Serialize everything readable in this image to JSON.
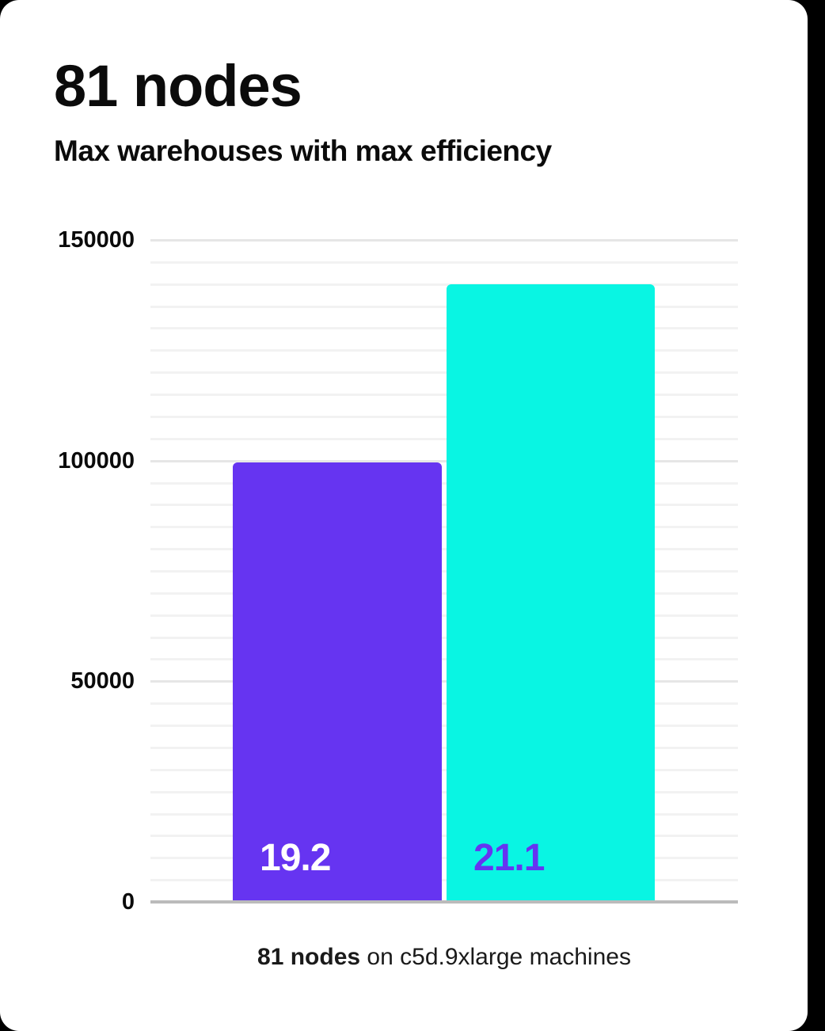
{
  "page": {
    "title": "81 nodes",
    "subtitle": "Max warehouses with max efficiency"
  },
  "caption": {
    "bold": "81 nodes",
    "rest": " on c5d.9xlarge machines"
  },
  "chart_data": {
    "type": "bar",
    "title": "81 nodes",
    "subtitle": "Max warehouses with max efficiency",
    "categories": [
      "19.2",
      "21.1"
    ],
    "values": [
      99600,
      140000
    ],
    "bar_labels": [
      "19.2",
      "21.1"
    ],
    "bar_colors": [
      "#6634F1",
      "#09F5E3"
    ],
    "bar_label_colors": [
      "#FFFFFF",
      "#6634F1"
    ],
    "xlabel": "",
    "ylabel": "",
    "ylim": [
      0,
      150000
    ],
    "yticks": [
      0,
      50000,
      100000,
      150000
    ],
    "minor_grid_step": 5000,
    "grid": true,
    "legend": false,
    "caption": "81 nodes on c5d.9xlarge machines"
  },
  "colors": {
    "background": "#000000",
    "card": "#FFFFFF",
    "axis_line": "#BBBBBB",
    "grid_major": "#E6E6E6",
    "grid_minor": "#F2F2F2",
    "text": "#0B0B0B"
  }
}
